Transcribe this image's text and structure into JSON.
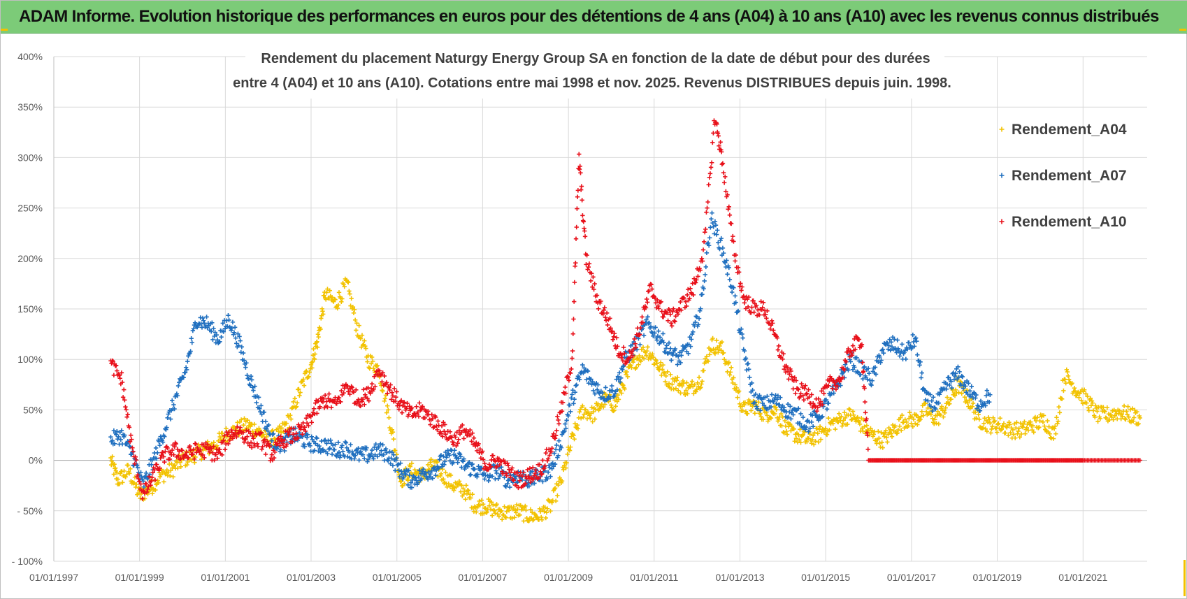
{
  "banner": {
    "title": "ADAM Informe. Evolution historique des performances en euros pour des détentions de 4 ans (A04) à 10 ans (A10) avec les revenus connus distribués"
  },
  "colors": {
    "banner_bg": "#7ccb78",
    "A04": "#f2c200",
    "A07": "#1f6fbf",
    "A10": "#e8101a",
    "grid": "#d9d9d9"
  },
  "chart_data": {
    "type": "scatter",
    "title_line1": "Rendement du placement Naturgy Energy Group SA en fonction de la date de début pour des durées",
    "title_line2": "entre 4 (A04) et 10 ans (A10). Cotations entre mai 1998 et nov. 2025. Revenus DISTRIBUES depuis juin. 1998.",
    "xlabel": "",
    "ylabel": "",
    "xlim": [
      "01/01/1997",
      "01/07/2022"
    ],
    "x_ticks": [
      "01/01/1997",
      "01/01/1999",
      "01/01/2001",
      "01/01/2003",
      "01/01/2005",
      "01/01/2007",
      "01/01/2009",
      "01/01/2011",
      "01/01/2013",
      "01/01/2015",
      "01/01/2017",
      "01/01/2019",
      "01/01/2021"
    ],
    "ylim": [
      -100,
      400
    ],
    "y_ticks": [
      {
        "v": 400,
        "label": "400%"
      },
      {
        "v": 350,
        "label": "350%"
      },
      {
        "v": 300,
        "label": "300%"
      },
      {
        "v": 250,
        "label": "250%"
      },
      {
        "v": 200,
        "label": "200%"
      },
      {
        "v": 150,
        "label": "150%"
      },
      {
        "v": 100,
        "label": "100%"
      },
      {
        "v": 50,
        "label": "50%"
      },
      {
        "v": 0,
        "label": "0%"
      },
      {
        "v": -50,
        "label": "- 50%"
      },
      {
        "v": -100,
        "label": "- 100%"
      }
    ],
    "grid": true,
    "legend_position": "right",
    "marker": "+",
    "series": [
      {
        "name": "Rendement_A04",
        "color": "#f2c200",
        "points": [
          [
            "1998-05",
            0
          ],
          [
            "1998-07",
            -20
          ],
          [
            "1998-10",
            -10
          ],
          [
            "1999-01",
            -35
          ],
          [
            "1999-04",
            -28
          ],
          [
            "1999-07",
            -15
          ],
          [
            "1999-10",
            -10
          ],
          [
            "2000-01",
            0
          ],
          [
            "2000-04",
            5
          ],
          [
            "2000-07",
            10
          ],
          [
            "2000-10",
            15
          ],
          [
            "2001-01",
            25
          ],
          [
            "2001-04",
            30
          ],
          [
            "2001-07",
            35
          ],
          [
            "2001-10",
            30
          ],
          [
            "2002-01",
            20
          ],
          [
            "2002-04",
            25
          ],
          [
            "2002-07",
            40
          ],
          [
            "2002-10",
            70
          ],
          [
            "2003-01",
            95
          ],
          [
            "2003-03",
            120
          ],
          [
            "2003-05",
            165
          ],
          [
            "2003-08",
            155
          ],
          [
            "2003-11",
            175
          ],
          [
            "2004-02",
            130
          ],
          [
            "2004-05",
            100
          ],
          [
            "2004-08",
            90
          ],
          [
            "2004-11",
            40
          ],
          [
            "2005-02",
            -20
          ],
          [
            "2005-05",
            -10
          ],
          [
            "2005-08",
            -15
          ],
          [
            "2005-11",
            -5
          ],
          [
            "2006-02",
            -15
          ],
          [
            "2006-05",
            -25
          ],
          [
            "2006-08",
            -30
          ],
          [
            "2006-11",
            -45
          ],
          [
            "2007-02",
            -45
          ],
          [
            "2007-05",
            -50
          ],
          [
            "2007-08",
            -52
          ],
          [
            "2007-11",
            -50
          ],
          [
            "2008-02",
            -55
          ],
          [
            "2008-05",
            -55
          ],
          [
            "2008-08",
            -45
          ],
          [
            "2008-11",
            -20
          ],
          [
            "2009-02",
            20
          ],
          [
            "2009-05",
            50
          ],
          [
            "2009-08",
            45
          ],
          [
            "2009-11",
            60
          ],
          [
            "2010-02",
            55
          ],
          [
            "2010-05",
            80
          ],
          [
            "2010-08",
            100
          ],
          [
            "2010-11",
            110
          ],
          [
            "2011-02",
            95
          ],
          [
            "2011-05",
            80
          ],
          [
            "2011-08",
            75
          ],
          [
            "2011-11",
            70
          ],
          [
            "2012-02",
            80
          ],
          [
            "2012-05",
            115
          ],
          [
            "2012-08",
            110
          ],
          [
            "2012-11",
            80
          ],
          [
            "2013-02",
            50
          ],
          [
            "2013-05",
            55
          ],
          [
            "2013-08",
            45
          ],
          [
            "2013-11",
            50
          ],
          [
            "2014-02",
            30
          ],
          [
            "2014-05",
            25
          ],
          [
            "2014-08",
            20
          ],
          [
            "2014-11",
            25
          ],
          [
            "2015-02",
            35
          ],
          [
            "2015-05",
            40
          ],
          [
            "2015-08",
            45
          ],
          [
            "2015-11",
            35
          ],
          [
            "2016-02",
            25
          ],
          [
            "2016-05",
            20
          ],
          [
            "2016-08",
            30
          ],
          [
            "2016-11",
            40
          ],
          [
            "2017-02",
            40
          ],
          [
            "2017-05",
            50
          ],
          [
            "2017-08",
            40
          ],
          [
            "2017-11",
            55
          ],
          [
            "2018-02",
            75
          ],
          [
            "2018-05",
            60
          ],
          [
            "2018-08",
            40
          ],
          [
            "2018-11",
            35
          ],
          [
            "2019-02",
            35
          ],
          [
            "2019-05",
            30
          ],
          [
            "2019-08",
            30
          ],
          [
            "2019-11",
            35
          ],
          [
            "2020-02",
            40
          ],
          [
            "2020-05",
            25
          ],
          [
            "2020-08",
            85
          ],
          [
            "2020-11",
            70
          ],
          [
            "2021-02",
            60
          ],
          [
            "2021-05",
            45
          ],
          [
            "2021-08",
            45
          ],
          [
            "2021-11",
            48
          ],
          [
            "2022-02",
            45
          ],
          [
            "2022-05",
            42
          ]
        ]
      },
      {
        "name": "Rendement_A07",
        "color": "#1f6fbf",
        "points": [
          [
            "1998-05",
            20
          ],
          [
            "1998-08",
            25
          ],
          [
            "1998-11",
            5
          ],
          [
            "1999-02",
            -25
          ],
          [
            "1999-05",
            0
          ],
          [
            "1999-08",
            30
          ],
          [
            "1999-11",
            60
          ],
          [
            "2000-02",
            90
          ],
          [
            "2000-05",
            140
          ],
          [
            "2000-08",
            135
          ],
          [
            "2000-11",
            120
          ],
          [
            "2001-02",
            140
          ],
          [
            "2001-05",
            115
          ],
          [
            "2001-08",
            80
          ],
          [
            "2001-11",
            50
          ],
          [
            "2002-02",
            20
          ],
          [
            "2002-05",
            15
          ],
          [
            "2002-08",
            25
          ],
          [
            "2002-11",
            20
          ],
          [
            "2003-02",
            15
          ],
          [
            "2003-05",
            15
          ],
          [
            "2003-08",
            10
          ],
          [
            "2003-11",
            12
          ],
          [
            "2004-02",
            5
          ],
          [
            "2004-05",
            5
          ],
          [
            "2004-08",
            10
          ],
          [
            "2004-11",
            5
          ],
          [
            "2005-02",
            -10
          ],
          [
            "2005-05",
            -20
          ],
          [
            "2005-08",
            -15
          ],
          [
            "2005-11",
            -10
          ],
          [
            "2006-02",
            0
          ],
          [
            "2006-05",
            5
          ],
          [
            "2006-08",
            -5
          ],
          [
            "2006-11",
            -10
          ],
          [
            "2007-02",
            -15
          ],
          [
            "2007-05",
            -10
          ],
          [
            "2007-08",
            -20
          ],
          [
            "2007-11",
            -15
          ],
          [
            "2008-02",
            -20
          ],
          [
            "2008-05",
            -15
          ],
          [
            "2008-08",
            -10
          ],
          [
            "2008-11",
            20
          ],
          [
            "2009-02",
            60
          ],
          [
            "2009-05",
            90
          ],
          [
            "2009-08",
            75
          ],
          [
            "2009-11",
            65
          ],
          [
            "2010-02",
            70
          ],
          [
            "2010-05",
            100
          ],
          [
            "2010-08",
            115
          ],
          [
            "2010-11",
            135
          ],
          [
            "2011-02",
            125
          ],
          [
            "2011-05",
            110
          ],
          [
            "2011-08",
            100
          ],
          [
            "2011-11",
            115
          ],
          [
            "2012-02",
            150
          ],
          [
            "2012-05",
            240
          ],
          [
            "2012-08",
            210
          ],
          [
            "2012-11",
            170
          ],
          [
            "2013-02",
            110
          ],
          [
            "2013-05",
            60
          ],
          [
            "2013-08",
            55
          ],
          [
            "2013-11",
            60
          ],
          [
            "2014-02",
            50
          ],
          [
            "2014-05",
            45
          ],
          [
            "2014-08",
            35
          ],
          [
            "2014-11",
            45
          ],
          [
            "2015-02",
            60
          ],
          [
            "2015-05",
            80
          ],
          [
            "2015-08",
            100
          ],
          [
            "2015-11",
            90
          ],
          [
            "2016-02",
            80
          ],
          [
            "2016-05",
            110
          ],
          [
            "2016-08",
            115
          ],
          [
            "2016-11",
            105
          ],
          [
            "2017-02",
            120
          ],
          [
            "2017-05",
            60
          ],
          [
            "2017-08",
            55
          ],
          [
            "2017-11",
            75
          ],
          [
            "2018-02",
            85
          ],
          [
            "2018-05",
            70
          ],
          [
            "2018-08",
            55
          ],
          [
            "2018-11",
            65
          ]
        ]
      },
      {
        "name": "Rendement_A10",
        "color": "#e8101a",
        "points": [
          [
            "1998-05",
            95
          ],
          [
            "1998-08",
            80
          ],
          [
            "1998-11",
            10
          ],
          [
            "1999-02",
            -35
          ],
          [
            "1999-05",
            -15
          ],
          [
            "1999-08",
            5
          ],
          [
            "1999-11",
            10
          ],
          [
            "2000-02",
            5
          ],
          [
            "2000-05",
            10
          ],
          [
            "2000-08",
            10
          ],
          [
            "2000-11",
            5
          ],
          [
            "2001-02",
            25
          ],
          [
            "2001-05",
            30
          ],
          [
            "2001-08",
            20
          ],
          [
            "2001-11",
            20
          ],
          [
            "2002-02",
            5
          ],
          [
            "2002-05",
            20
          ],
          [
            "2002-08",
            25
          ],
          [
            "2002-11",
            30
          ],
          [
            "2003-02",
            50
          ],
          [
            "2003-05",
            60
          ],
          [
            "2003-08",
            55
          ],
          [
            "2003-11",
            75
          ],
          [
            "2004-02",
            60
          ],
          [
            "2004-05",
            65
          ],
          [
            "2004-08",
            90
          ],
          [
            "2004-11",
            70
          ],
          [
            "2005-02",
            55
          ],
          [
            "2005-05",
            45
          ],
          [
            "2005-08",
            50
          ],
          [
            "2005-11",
            40
          ],
          [
            "2006-02",
            30
          ],
          [
            "2006-05",
            20
          ],
          [
            "2006-08",
            30
          ],
          [
            "2006-11",
            15
          ],
          [
            "2007-02",
            -5
          ],
          [
            "2007-05",
            0
          ],
          [
            "2007-08",
            -10
          ],
          [
            "2007-11",
            -20
          ],
          [
            "2008-02",
            -15
          ],
          [
            "2008-05",
            -10
          ],
          [
            "2008-08",
            10
          ],
          [
            "2008-11",
            50
          ],
          [
            "2009-02",
            100
          ],
          [
            "2009-04",
            300
          ],
          [
            "2009-06",
            200
          ],
          [
            "2009-09",
            160
          ],
          [
            "2009-12",
            140
          ],
          [
            "2010-03",
            110
          ],
          [
            "2010-06",
            100
          ],
          [
            "2010-09",
            130
          ],
          [
            "2010-12",
            170
          ],
          [
            "2011-03",
            150
          ],
          [
            "2011-06",
            140
          ],
          [
            "2011-09",
            155
          ],
          [
            "2011-12",
            170
          ],
          [
            "2012-03",
            210
          ],
          [
            "2012-06",
            340
          ],
          [
            "2012-08",
            300
          ],
          [
            "2012-11",
            215
          ],
          [
            "2013-02",
            160
          ],
          [
            "2013-05",
            150
          ],
          [
            "2013-08",
            150
          ],
          [
            "2013-11",
            120
          ],
          [
            "2014-02",
            90
          ],
          [
            "2014-05",
            70
          ],
          [
            "2014-08",
            65
          ],
          [
            "2014-11",
            55
          ],
          [
            "2015-02",
            75
          ],
          [
            "2015-05",
            80
          ],
          [
            "2015-08",
            110
          ],
          [
            "2015-11",
            120
          ],
          [
            "2016-01",
            0
          ],
          [
            "2017-01",
            0
          ],
          [
            "2018-01",
            0
          ],
          [
            "2019-01",
            0
          ],
          [
            "2020-01",
            0
          ],
          [
            "2021-01",
            0
          ],
          [
            "2022-05",
            0
          ]
        ]
      }
    ]
  }
}
